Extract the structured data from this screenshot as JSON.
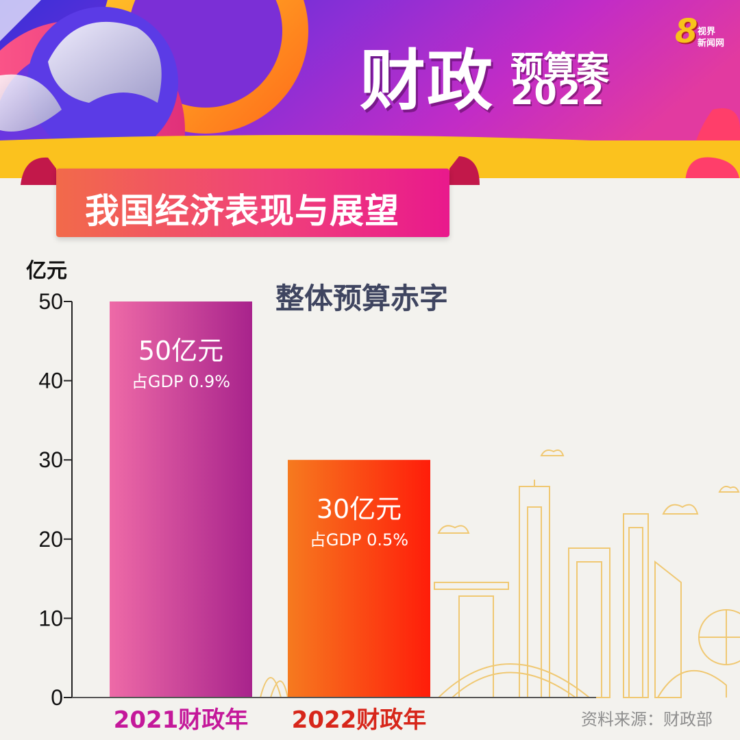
{
  "header": {
    "title_main": "财政",
    "title_sub": "预算案",
    "title_year": "2022",
    "logo_mark": "8",
    "logo_line1": "视界",
    "logo_line2": "新闻网"
  },
  "section_title": "我国经济表现与展望",
  "source": "资料来源：财政部",
  "colors": {
    "bar_2021_start": "#ee6aa7",
    "bar_2021_end": "#a8238c",
    "bar_2022_start": "#f67a1f",
    "bar_2022_end": "#ff1d0a",
    "label_2021": "#c4189a",
    "label_2022": "#d7261a",
    "skyline": "#f0c872"
  },
  "chart_data": {
    "type": "bar",
    "title": "整体预算赤字",
    "ylabel": "亿元",
    "ylim": [
      0,
      50
    ],
    "yticks": [
      0,
      10,
      20,
      30,
      40,
      50
    ],
    "grid": false,
    "categories": [
      "2021财政年",
      "2022财政年"
    ],
    "values": [
      50,
      30
    ],
    "value_labels": [
      "50亿元",
      "30亿元"
    ],
    "sub_labels": [
      "占GDP 0.9%",
      "占GDP 0.5%"
    ]
  }
}
